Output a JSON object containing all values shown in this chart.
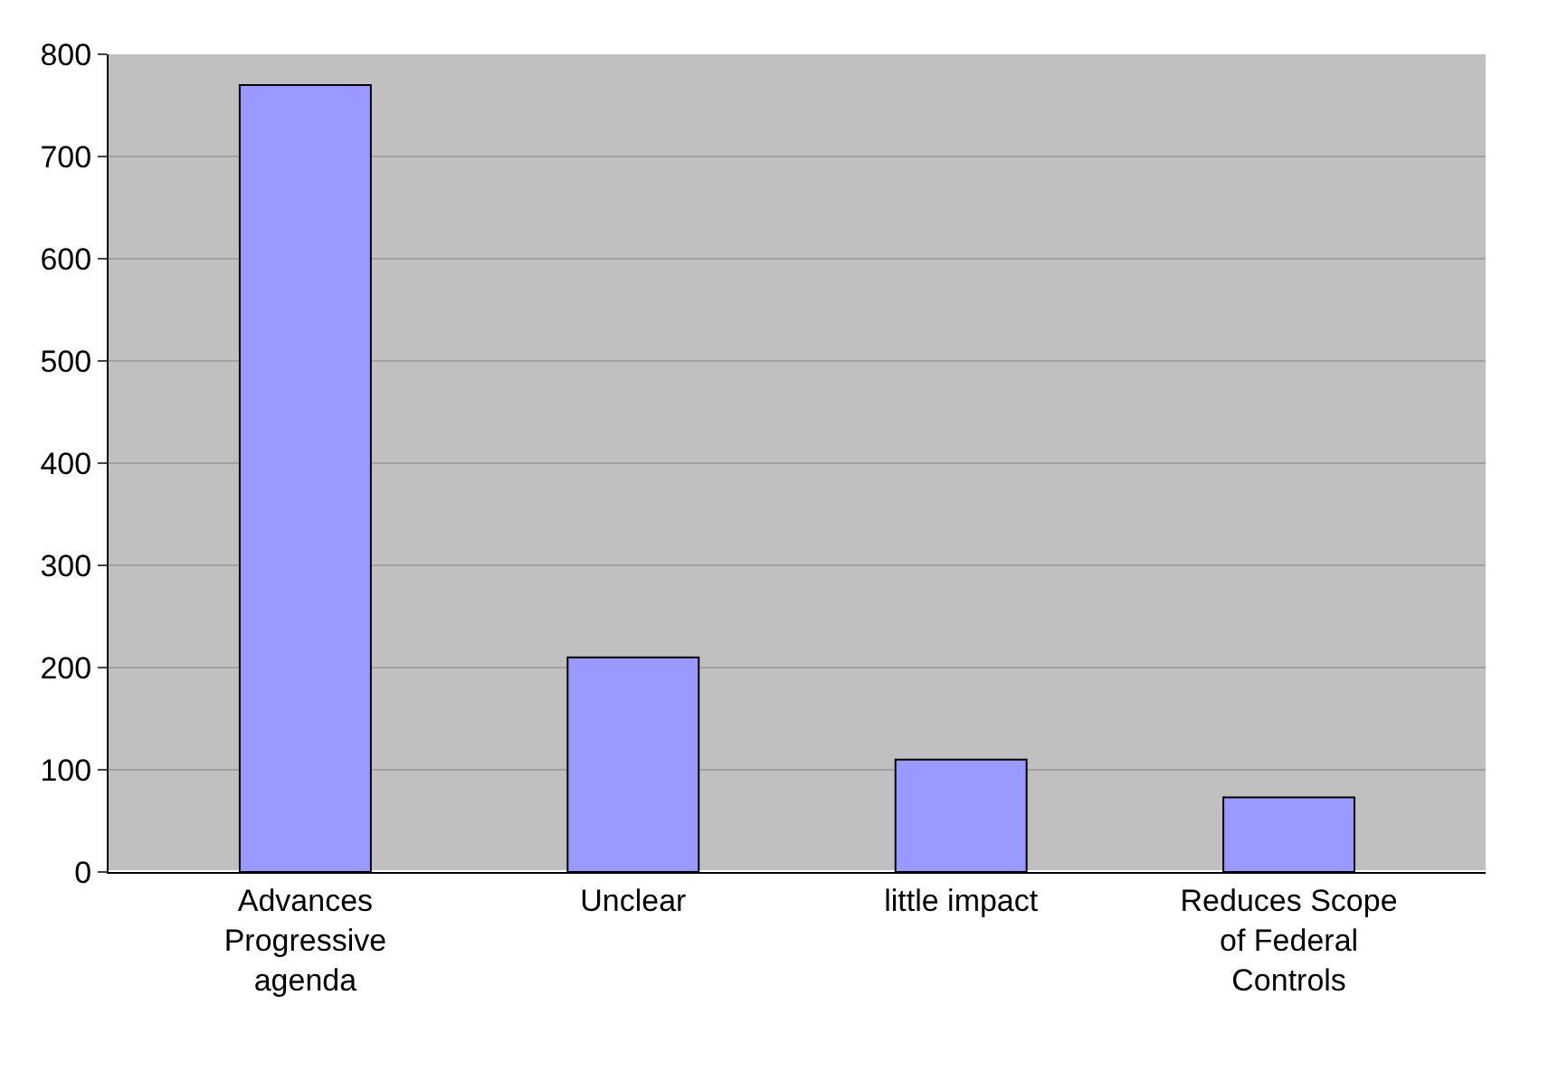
{
  "chart_data": {
    "type": "bar",
    "categories": [
      "Advances Progressive agenda",
      "Unclear",
      "little impact",
      "Reduces Scope of Federal Controls"
    ],
    "values": [
      770,
      210,
      110,
      73
    ],
    "color": "#9999ff",
    "ylim": [
      0,
      800
    ],
    "yticks": [
      0,
      100,
      200,
      300,
      400,
      500,
      600,
      700,
      800
    ],
    "grid": "y"
  }
}
